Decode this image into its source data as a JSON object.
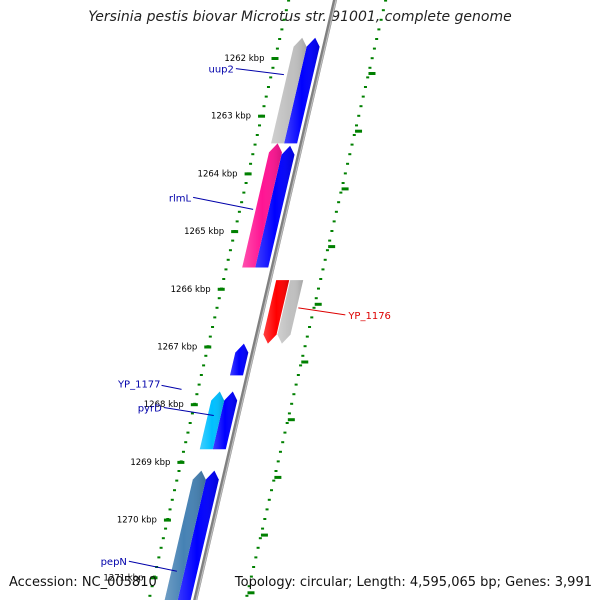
{
  "title": "Yersinia pestis biovar Microtus str. 91001, complete genome",
  "accession_line": "Accession: NC_005810",
  "summary_line": "Topology: circular; Length: 4,595,065 bp; Genes: 3,991",
  "ticks": [
    {
      "kb": 1262,
      "label": "1262 kbp"
    },
    {
      "kb": 1263,
      "label": "1263 kbp"
    },
    {
      "kb": 1264,
      "label": "1264 kbp"
    },
    {
      "kb": 1265,
      "label": "1265 kbp"
    },
    {
      "kb": 1266,
      "label": "1266 kbp"
    },
    {
      "kb": 1267,
      "label": "1267 kbp"
    },
    {
      "kb": 1268,
      "label": "1268 kbp"
    },
    {
      "kb": 1269,
      "label": "1269 kbp"
    },
    {
      "kb": 1270,
      "label": "1270 kbp"
    },
    {
      "kb": 1271,
      "label": "1271 kbp"
    }
  ],
  "features": [
    {
      "id": "top-blue",
      "track": "cds-inner",
      "start_kb": 1261.65,
      "end_kb": 1263.48,
      "strand": "+",
      "color": "#0000ff"
    },
    {
      "id": "uup2",
      "track": "gene-inner",
      "start_kb": 1261.65,
      "end_kb": 1263.48,
      "strand": "+",
      "color": "#c0c0c0",
      "label": "uup2",
      "label_color": "#0000aa"
    },
    {
      "id": "rlmL-cds",
      "track": "cds-inner",
      "start_kb": 1263.52,
      "end_kb": 1265.63,
      "strand": "+",
      "color": "#0000ff"
    },
    {
      "id": "rlmL",
      "track": "gene-inner",
      "start_kb": 1263.48,
      "end_kb": 1265.63,
      "strand": "+",
      "color": "#ff1493",
      "label": "rlmL",
      "label_color": "#0000aa"
    },
    {
      "id": "YP_1176-cds",
      "track": "cds-outer",
      "start_kb": 1265.85,
      "end_kb": 1266.95,
      "strand": "-",
      "color": "#ff0000"
    },
    {
      "id": "YP_1176",
      "track": "gene-outer",
      "start_kb": 1265.85,
      "end_kb": 1266.95,
      "strand": "-",
      "color": "#c0c0c0",
      "label": "YP_1176",
      "label_color": "#dd0000"
    },
    {
      "id": "YP_1177",
      "track": "cds-inner",
      "start_kb": 1266.95,
      "end_kb": 1267.5,
      "strand": "+",
      "color": "#0000ff",
      "label": "YP_1177",
      "label_color": "#0000aa"
    },
    {
      "id": "pyrD-cds",
      "track": "cds-inner",
      "start_kb": 1267.78,
      "end_kb": 1268.78,
      "strand": "+",
      "color": "#0000ff"
    },
    {
      "id": "pyrD",
      "track": "gene-inner",
      "start_kb": 1267.78,
      "end_kb": 1268.78,
      "strand": "+",
      "color": "#00bfff",
      "label": "pyrD",
      "label_color": "#0000aa"
    },
    {
      "id": "pepN-cds",
      "track": "cds-inner",
      "start_kb": 1269.15,
      "end_kb": 1271.6,
      "strand": "+",
      "color": "#0000ff"
    },
    {
      "id": "pepN",
      "track": "gene-inner",
      "start_kb": 1269.15,
      "end_kb": 1271.6,
      "strand": "+",
      "color": "#4682b4",
      "label": "pepN",
      "label_color": "#0000aa"
    }
  ],
  "colors": {
    "backbone": "#808080",
    "tick_dots": "#008000",
    "tick_label": "#000000"
  }
}
